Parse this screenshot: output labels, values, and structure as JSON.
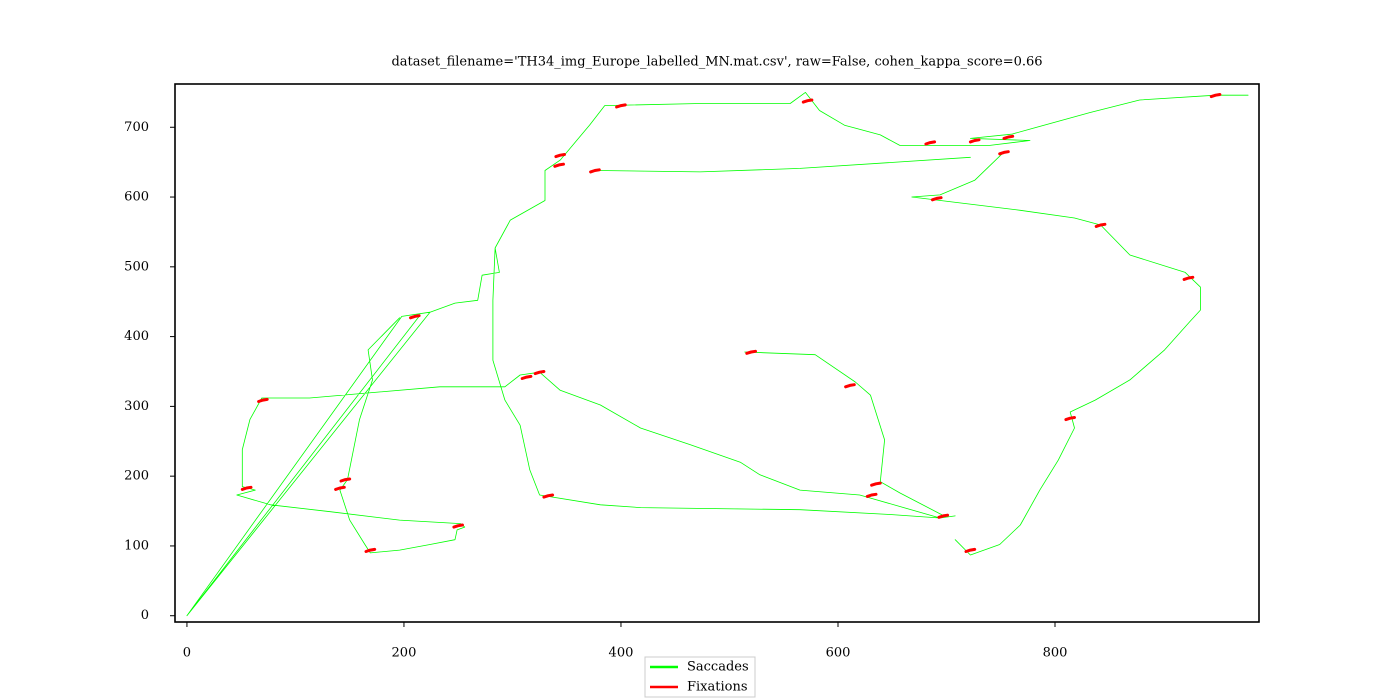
{
  "chart_data": {
    "type": "line",
    "title": "dataset_filename='TH34_img_Europe_labelled_MN.mat.csv', raw=False, cohen_kappa_score=0.66",
    "xlim": [
      -11,
      988
    ],
    "ylim": [
      -9,
      762
    ],
    "xticks": [
      0,
      200,
      400,
      600,
      800
    ],
    "yticks": [
      0,
      100,
      200,
      300,
      400,
      500,
      600,
      700
    ],
    "legend": "bottom",
    "series": [
      {
        "name": "Saccades",
        "color": "#00ff00",
        "x": [
          0,
          224,
          198,
          0,
          215,
          0,
          224,
          247,
          268,
          272,
          288,
          284,
          298,
          330,
          330,
          344,
          371,
          385,
          473,
          556,
          570,
          583,
          606,
          639,
          657,
          740,
          777,
          722,
          760,
          832,
          878,
          948,
          978,
          null,
          752,
          726,
          694,
          668,
          768,
          818,
          842,
          869,
          920,
          934,
          934,
          924,
          901,
          869,
          837,
          814,
          818,
          803,
          786,
          768,
          749,
          722,
          708,
          null,
          699,
          657,
          639,
          643,
          630,
          616,
          579,
          514,
          null,
          379,
          473,
          565,
          722,
          null,
          69,
          113,
          233,
          293,
          307,
          325,
          344,
          381,
          418,
          464,
          510,
          528,
          565,
          620,
          694,
          708,
          null,
          284,
          282,
          282,
          293,
          307,
          316,
          325,
          381,
          418,
          565,
          648,
          694,
          null,
          69,
          58,
          51,
          51,
          63,
          46,
          77,
          132,
          196,
          252,
          256,
          249,
          247,
          224,
          196,
          169,
          164,
          150,
          141,
          148,
          159,
          171,
          167,
          196
        ],
        "values": [
          0,
          435,
          429,
          0,
          431,
          0,
          435,
          448,
          452,
          488,
          492,
          527,
          567,
          595,
          638,
          653,
          703,
          731,
          734,
          734,
          750,
          724,
          703,
          689,
          674,
          674,
          681,
          684,
          690,
          721,
          739,
          746,
          746,
          null,
          663,
          624,
          603,
          600,
          581,
          570,
          560,
          517,
          492,
          471,
          438,
          421,
          381,
          338,
          309,
          292,
          269,
          223,
          180,
          130,
          102,
          87,
          109,
          null,
          142,
          176,
          192,
          252,
          316,
          335,
          374,
          378,
          null,
          638,
          636,
          641,
          657,
          null,
          312,
          312,
          328,
          328,
          345,
          349,
          323,
          302,
          269,
          245,
          220,
          202,
          180,
          173,
          140,
          143,
          null,
          527,
          452,
          366,
          309,
          273,
          209,
          173,
          159,
          155,
          152,
          145,
          140,
          null,
          312,
          281,
          238,
          185,
          180,
          173,
          159,
          149,
          137,
          132,
          127,
          123,
          109,
          102,
          94,
          90,
          102,
          137,
          180,
          195,
          281,
          338,
          381,
          427
        ]
      },
      {
        "name": "Fixations",
        "color": "#ff0000",
        "x": [
          396,
          400,
          404,
          null,
          568,
          572,
          576,
          null,
          944,
          948,
          952,
          null,
          722,
          726,
          730,
          null,
          753,
          757,
          761,
          null,
          749,
          753,
          757,
          null,
          681,
          685,
          689,
          null,
          687,
          691,
          695,
          null,
          838,
          842,
          846,
          null,
          919,
          923,
          927,
          null,
          810,
          814,
          818,
          null,
          718,
          722,
          726,
          null,
          693,
          697,
          701,
          null,
          631,
          635,
          639,
          null,
          627,
          631,
          635,
          null,
          607,
          611,
          615,
          null,
          516,
          520,
          524,
          null,
          309,
          313,
          317,
          null,
          321,
          325,
          329,
          null,
          329,
          333,
          337,
          null,
          246,
          250,
          254,
          null,
          165,
          169,
          173,
          null,
          137,
          141,
          145,
          null,
          142,
          146,
          150,
          null,
          51,
          55,
          59,
          null,
          66,
          70,
          74,
          null,
          206,
          210,
          214,
          null,
          340,
          344,
          348,
          null,
          339,
          343,
          347,
          null,
          372,
          376,
          380
        ],
        "values": [
          729,
          731,
          732,
          null,
          736,
          738,
          739,
          null,
          744,
          746,
          747,
          null,
          679,
          681,
          682,
          null,
          684,
          686,
          687,
          null,
          662,
          664,
          665,
          null,
          676,
          678,
          679,
          null,
          596,
          598,
          599,
          null,
          558,
          560,
          561,
          null,
          482,
          484,
          485,
          null,
          281,
          283,
          284,
          null,
          92,
          94,
          95,
          null,
          141,
          143,
          144,
          null,
          187,
          189,
          190,
          null,
          171,
          173,
          174,
          null,
          328,
          330,
          331,
          null,
          376,
          378,
          379,
          null,
          340,
          342,
          343,
          null,
          347,
          349,
          350,
          null,
          170,
          172,
          173,
          null,
          127,
          129,
          130,
          null,
          92,
          94,
          95,
          null,
          181,
          183,
          184,
          null,
          193,
          195,
          196,
          null,
          181,
          183,
          184,
          null,
          307,
          309,
          310,
          null,
          427,
          429,
          430,
          null,
          658,
          660,
          661,
          null,
          644,
          646,
          647,
          null,
          636,
          638,
          639
        ]
      }
    ]
  }
}
